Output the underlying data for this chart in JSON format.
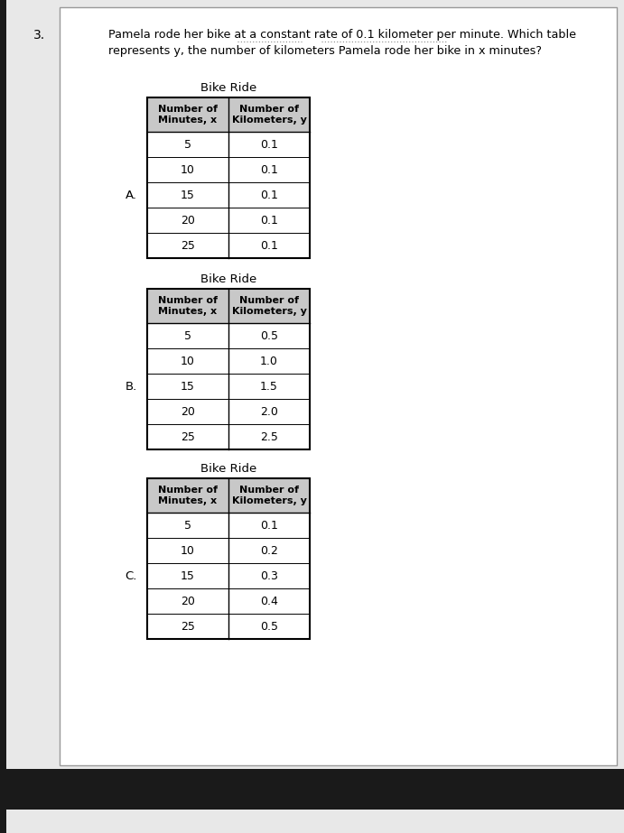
{
  "question_number": "3.",
  "question_text_line1": "Pamela rode her bike at a constant rate of 0.1 kilometer per minute. Which table",
  "question_text_line2": "represents y, the number of kilometers Pamela rode her bike in x minutes?",
  "table_title": "Bike Ride",
  "col1_header": "Number of\nMinutes, x",
  "col2_header": "Number of\nKilometers, y",
  "minutes": [
    5,
    10,
    15,
    20,
    25
  ],
  "table_A_label": "A.",
  "table_A_km": [
    "0.1",
    "0.1",
    "0.1",
    "0.1",
    "0.1"
  ],
  "table_B_label": "B.",
  "table_B_km": [
    "0.5",
    "1.0",
    "1.5",
    "2.0",
    "2.5"
  ],
  "table_C_label": "C.",
  "table_C_km": [
    "0.1",
    "0.2",
    "0.3",
    "0.4",
    "0.5"
  ],
  "bg_color": "#ffffff",
  "header_bg": "#c8c8c8",
  "border_color": "#000000",
  "text_color": "#000000",
  "page_bg": "#e8e8e8",
  "bottom_bar_color": "#1a1a1a",
  "left_strip_color": "#1a1a1a",
  "font_size_question": 9.2,
  "font_size_table_header": 8.0,
  "font_size_table_data": 9.0,
  "font_size_title": 9.5,
  "font_size_label": 9.5,
  "font_size_qnum": 10.0
}
